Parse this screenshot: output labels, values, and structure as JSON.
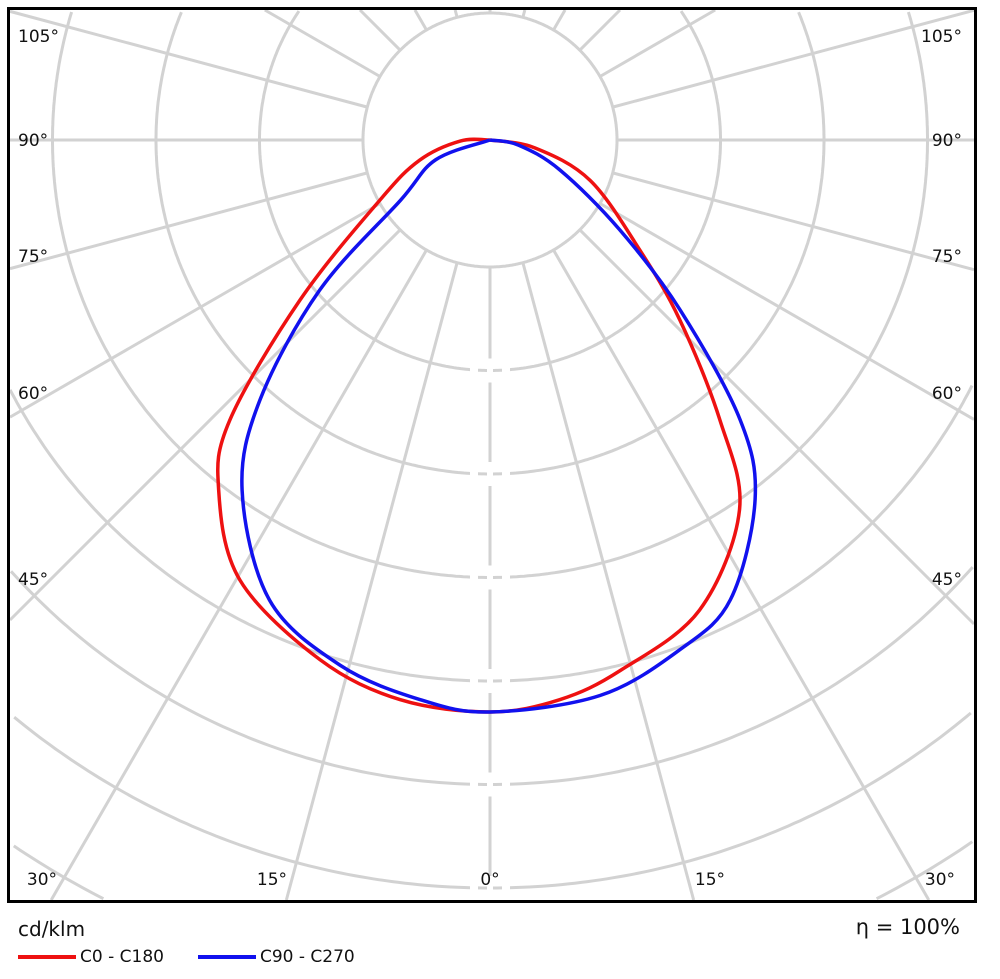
{
  "chart_data": {
    "type": "polar-line",
    "unit_label": "cd/klm",
    "efficiency_label": "η = 100%",
    "angle_labels": {
      "left": [
        "105°",
        "90°",
        "75°",
        "60°",
        "45°"
      ],
      "right": [
        "105°",
        "90°",
        "75°",
        "60°",
        "45°"
      ],
      "bottom": [
        "30°",
        "15°",
        "0°",
        "15°",
        "30°"
      ]
    },
    "grid": true,
    "legend_placement": "bottom-left",
    "series": [
      {
        "name": "C0 - C180",
        "color": "#ee1111",
        "left": [
          [
            0,
            100
          ],
          [
            9.1,
            99.1
          ],
          [
            18.1,
            95.6
          ],
          [
            29.6,
            88.5
          ],
          [
            37.8,
            77.4
          ],
          [
            42.9,
            66.8
          ],
          [
            49.9,
            43.4
          ],
          [
            61.4,
            21.9
          ],
          [
            74,
            12.8
          ],
          [
            88,
            5.2
          ],
          [
            90,
            0
          ]
        ],
        "right": [
          [
            0,
            100
          ],
          [
            7.1,
            98.6
          ],
          [
            13.8,
            95.5
          ],
          [
            24,
            90
          ],
          [
            34,
            78
          ],
          [
            39.4,
            63.3
          ],
          [
            46.5,
            45.8
          ],
          [
            53.7,
            32.5
          ],
          [
            68,
            18.9
          ],
          [
            80,
            8
          ],
          [
            90,
            0
          ]
        ]
      },
      {
        "name": "C90 - C270",
        "color": "#1111ee",
        "left": [
          [
            0,
            100
          ],
          [
            7.1,
            98.6
          ],
          [
            15.9,
            95.5
          ],
          [
            25.6,
            89.2
          ],
          [
            35.3,
            75
          ],
          [
            41.5,
            60.7
          ],
          [
            48.6,
            39.7
          ],
          [
            56,
            18.9
          ],
          [
            70,
            10.1
          ],
          [
            90,
            0
          ]
        ],
        "right": [
          [
            0,
            100
          ],
          [
            11.2,
            99
          ],
          [
            20.4,
            95.1
          ],
          [
            27.6,
            90.7
          ],
          [
            36.4,
            78.1
          ],
          [
            41.8,
            65.6
          ],
          [
            48.2,
            44.6
          ],
          [
            55.3,
            27.6
          ],
          [
            66.8,
            13.3
          ],
          [
            80,
            5
          ],
          [
            90,
            0
          ]
        ]
      }
    ]
  }
}
